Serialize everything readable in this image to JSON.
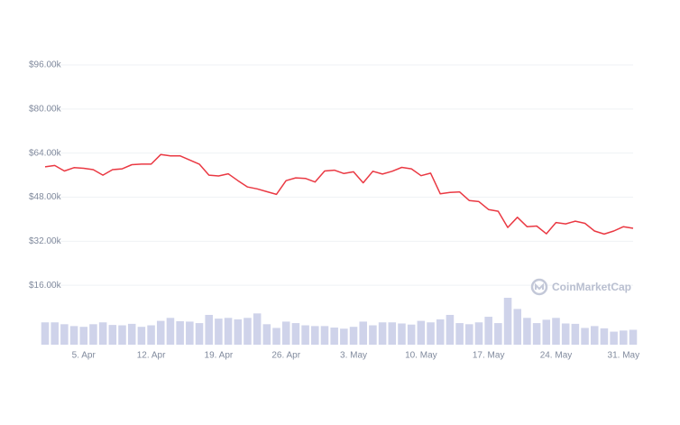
{
  "chart_data": {
    "type": "line",
    "categories": [
      null,
      null,
      null,
      null,
      "5. Apr",
      null,
      null,
      null,
      null,
      null,
      null,
      "12. Apr",
      null,
      null,
      null,
      null,
      null,
      null,
      "19. Apr",
      null,
      null,
      null,
      null,
      null,
      null,
      "26. Apr",
      null,
      null,
      null,
      null,
      null,
      null,
      "3. May",
      null,
      null,
      null,
      null,
      null,
      null,
      "10. May",
      null,
      null,
      null,
      null,
      null,
      null,
      "17. May",
      null,
      null,
      null,
      null,
      null,
      null,
      "24. May",
      null,
      null,
      null,
      null,
      null,
      null,
      "31. May",
      null
    ],
    "series": [
      {
        "name": "Price",
        "color": "#ea3943",
        "values": [
          59000,
          59500,
          57500,
          58700,
          58500,
          58000,
          56000,
          58000,
          58300,
          59800,
          60000,
          60000,
          63500,
          63000,
          63000,
          61500,
          60000,
          56000,
          55700,
          56500,
          54000,
          51700,
          51000,
          50000,
          49000,
          54000,
          55000,
          54800,
          53500,
          57500,
          57800,
          56600,
          57200,
          53200,
          57400,
          56400,
          57400,
          58800,
          58300,
          55800,
          56700,
          49200,
          49700,
          49900,
          46800,
          46400,
          43500,
          42900,
          37000,
          40700,
          37300,
          37500,
          34700,
          38800,
          38300,
          39300,
          38500,
          35700,
          34600,
          35700,
          37300,
          36700
        ]
      }
    ],
    "volume": {
      "color": "#cfd3ea",
      "values": [
        60,
        60,
        55,
        50,
        48,
        55,
        60,
        53,
        52,
        56,
        48,
        52,
        64,
        72,
        63,
        62,
        58,
        80,
        70,
        72,
        68,
        72,
        84,
        55,
        45,
        62,
        58,
        52,
        50,
        50,
        46,
        43,
        48,
        62,
        52,
        60,
        60,
        57,
        54,
        64,
        60,
        68,
        80,
        58,
        55,
        60,
        75,
        58,
        126,
        96,
        72,
        58,
        67,
        72,
        57,
        56,
        45,
        50,
        44,
        35,
        38,
        40
      ]
    },
    "ylim": [
      0,
      96000
    ],
    "yticks": [
      {
        "value": 16000,
        "label": "$16.00k"
      },
      {
        "value": 32000,
        "label": "$32.00k"
      },
      {
        "value": 48000,
        "label": "$48.00k"
      },
      {
        "value": 64000,
        "label": "$64.00k"
      },
      {
        "value": 80000,
        "label": "$80.00k"
      },
      {
        "value": 96000,
        "label": "$96.00k"
      }
    ],
    "grid": true,
    "watermark": "CoinMarketCap"
  }
}
